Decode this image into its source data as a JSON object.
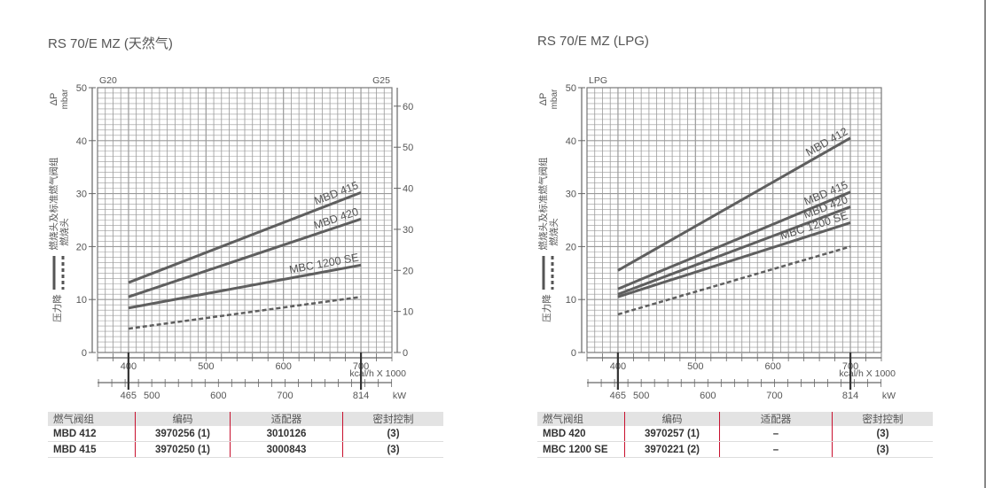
{
  "chart_data": [
    {
      "type": "line",
      "title": "RS 70/E MZ (天然气)",
      "gas_label_left": "G20",
      "gas_label_right": "G25",
      "ylabel": "ΔP",
      "yunit": "mbar",
      "ylim": [
        0,
        50
      ],
      "yticks": [
        0,
        10,
        20,
        30,
        40,
        50
      ],
      "right_axis_ticks": [
        0,
        10,
        20,
        30,
        40,
        50,
        60
      ],
      "xlim": [
        360,
        740
      ],
      "xticks": [
        400,
        500,
        600,
        700
      ],
      "xunit": "kcal/h X 1000",
      "kw_ticks": [
        465,
        500,
        600,
        700,
        814
      ],
      "kw_unit": "kW",
      "side_label_top": "燃烧头及标准燃气阀组",
      "side_label_mid": "燃烧头",
      "side_label_bottom": "压力降",
      "series": [
        {
          "name": "MBD 415",
          "x": [
            400,
            700
          ],
          "y": [
            13.2,
            30.2
          ],
          "style": "solid"
        },
        {
          "name": "MBD 420",
          "x": [
            400,
            700
          ],
          "y": [
            10.5,
            25.2
          ],
          "style": "solid"
        },
        {
          "name": "MBC 1200 SE",
          "x": [
            400,
            700
          ],
          "y": [
            8.4,
            16.5
          ],
          "style": "solid"
        },
        {
          "name": "",
          "x": [
            400,
            700
          ],
          "y": [
            4.5,
            10.5
          ],
          "style": "dashed"
        }
      ]
    },
    {
      "type": "line",
      "title": "RS 70/E MZ (LPG)",
      "gas_label_left": "LPG",
      "gas_label_right": "",
      "ylabel": "ΔP",
      "yunit": "mbar",
      "ylim": [
        0,
        50
      ],
      "yticks": [
        0,
        10,
        20,
        30,
        40,
        50
      ],
      "right_axis_ticks": [],
      "xlim": [
        360,
        740
      ],
      "xticks": [
        400,
        500,
        600,
        700
      ],
      "xunit": "kcal/h X 1000",
      "kw_ticks": [
        465,
        500,
        600,
        700,
        814
      ],
      "kw_unit": "kW",
      "side_label_top": "燃烧头及标准燃气阀组",
      "side_label_mid": "燃烧头",
      "side_label_bottom": "压力降",
      "series": [
        {
          "name": "MBD 412",
          "x": [
            400,
            700
          ],
          "y": [
            15.5,
            40.5
          ],
          "style": "solid"
        },
        {
          "name": "MBD 415",
          "x": [
            400,
            700
          ],
          "y": [
            12,
            30.3
          ],
          "style": "solid"
        },
        {
          "name": "MBD 420",
          "x": [
            400,
            700
          ],
          "y": [
            11,
            27.5
          ],
          "style": "solid"
        },
        {
          "name": "MBC 1200 SE",
          "x": [
            400,
            700
          ],
          "y": [
            10.5,
            24.5
          ],
          "style": "solid"
        },
        {
          "name": "",
          "x": [
            400,
            700
          ],
          "y": [
            7.2,
            20
          ],
          "style": "dashed"
        }
      ]
    }
  ],
  "tables": [
    {
      "headers": [
        "燃气阀组",
        "编码",
        "适配器",
        "密封控制"
      ],
      "rows": [
        [
          "MBD 412",
          "3970256 (1)",
          "3010126",
          "(3)"
        ],
        [
          "MBD 415",
          "3970250 (1)",
          "3000843",
          "(3)"
        ]
      ]
    },
    {
      "headers": [
        "燃气阀组",
        "编码",
        "适配器",
        "密封控制"
      ],
      "rows": [
        [
          "MBD 420",
          "3970257 (1)",
          "–",
          "(3)"
        ],
        [
          "MBC 1200 SE",
          "3970221 (2)",
          "–",
          "(3)"
        ]
      ]
    }
  ],
  "colors": {
    "line": "#5f5f5f",
    "grid": "#9a9a9a",
    "header_bg": "#e3e3e3",
    "divider": "#c8102e"
  }
}
